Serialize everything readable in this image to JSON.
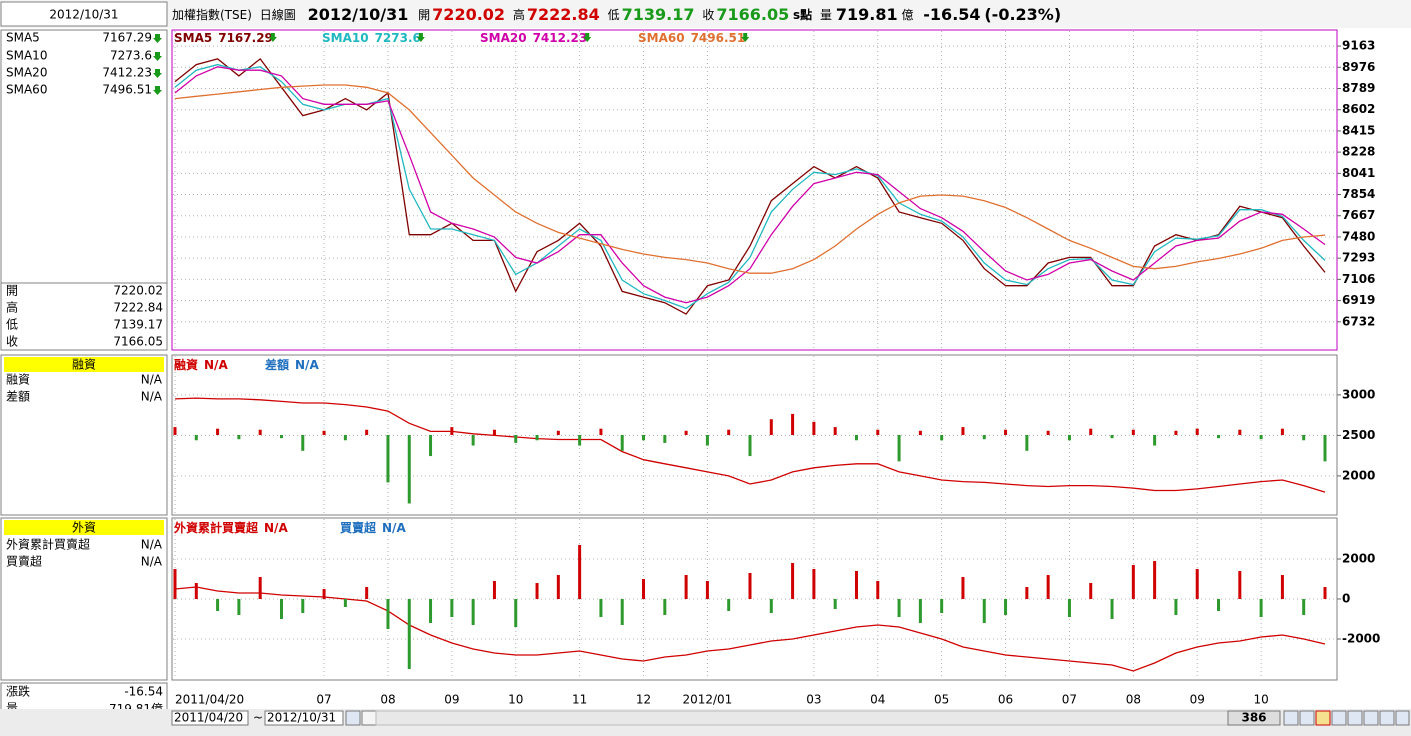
{
  "header": {
    "symbol": "加權指數(TSE)",
    "period": "日線圖",
    "date": "2012/10/31",
    "open_label": "開",
    "open": "7220.02",
    "high_label": "高",
    "high": "7222.84",
    "low_label": "低",
    "low": "7139.17",
    "close_label": "收",
    "close": "7166.05",
    "unit": "s點",
    "volume_label": "量",
    "volume": "719.81",
    "volume_unit": "億",
    "change": "-16.54",
    "change_pct": "(-0.23%)"
  },
  "sidebar": {
    "date": "2012/10/31",
    "change_label": "漲跌"
  },
  "toolbar": {
    "start": "2011/04/20",
    "separator": "~",
    "end": "2012/10/31",
    "count": "386"
  },
  "chart_data": [
    {
      "type": "line",
      "categories": [
        "2011/04/20",
        null,
        null,
        null,
        null,
        null,
        null,
        "07",
        null,
        null,
        "08",
        null,
        null,
        "09",
        null,
        null,
        "10",
        null,
        null,
        "11",
        null,
        null,
        "12",
        null,
        null,
        "2012/01",
        null,
        null,
        null,
        null,
        "03",
        null,
        null,
        "04",
        null,
        null,
        "05",
        null,
        null,
        "06",
        null,
        null,
        "07",
        null,
        null,
        "08",
        null,
        null,
        "09",
        null,
        null,
        "10",
        null,
        null,
        null
      ],
      "series": [
        {
          "name": "SMA5",
          "color": "#800000",
          "values": [
            8850,
            9000,
            9050,
            8900,
            9050,
            8800,
            8550,
            8600,
            8700,
            8600,
            8750,
            7500,
            7500,
            7600,
            7450,
            7450,
            7000,
            7350,
            7450,
            7600,
            7400,
            7000,
            6950,
            6900,
            6800,
            7050,
            7100,
            7400,
            7800,
            7950,
            8100,
            8000,
            8100,
            8000,
            7700,
            7650,
            7600,
            7450,
            7200,
            7050,
            7050,
            7250,
            7300,
            7300,
            7050,
            7050,
            7400,
            7500,
            7450,
            7500,
            7750,
            7700,
            7650,
            7400,
            7167.29
          ]
        },
        {
          "name": "SMA10",
          "color": "#20b8c0",
          "values": [
            8800,
            8950,
            9000,
            8950,
            8980,
            8850,
            8650,
            8600,
            8650,
            8650,
            8700,
            7900,
            7550,
            7550,
            7500,
            7450,
            7150,
            7250,
            7400,
            7550,
            7450,
            7100,
            6980,
            6920,
            6850,
            6980,
            7080,
            7300,
            7700,
            7900,
            8050,
            8030,
            8080,
            8020,
            7780,
            7680,
            7620,
            7480,
            7250,
            7100,
            7060,
            7200,
            7280,
            7290,
            7100,
            7060,
            7350,
            7470,
            7460,
            7490,
            7720,
            7720,
            7660,
            7450,
            7273.6
          ]
        },
        {
          "name": "SMA20",
          "color": "#d000a8",
          "values": [
            8750,
            8900,
            8980,
            8950,
            8950,
            8900,
            8700,
            8650,
            8650,
            8650,
            8680,
            8200,
            7700,
            7600,
            7550,
            7480,
            7300,
            7250,
            7350,
            7500,
            7500,
            7250,
            7050,
            6950,
            6900,
            6950,
            7050,
            7200,
            7500,
            7750,
            7950,
            8000,
            8050,
            8030,
            7880,
            7730,
            7650,
            7530,
            7350,
            7180,
            7100,
            7150,
            7250,
            7280,
            7180,
            7100,
            7250,
            7400,
            7450,
            7470,
            7620,
            7700,
            7680,
            7550,
            7412.23
          ]
        },
        {
          "name": "SMA60",
          "color": "#e07030",
          "values": [
            8700,
            8720,
            8740,
            8760,
            8780,
            8800,
            8810,
            8820,
            8820,
            8800,
            8750,
            8600,
            8400,
            8200,
            8000,
            7850,
            7700,
            7600,
            7520,
            7470,
            7420,
            7370,
            7330,
            7300,
            7280,
            7250,
            7200,
            7160,
            7160,
            7200,
            7280,
            7400,
            7550,
            7680,
            7780,
            7840,
            7850,
            7840,
            7800,
            7740,
            7650,
            7550,
            7450,
            7380,
            7300,
            7220,
            7200,
            7220,
            7260,
            7290,
            7330,
            7380,
            7450,
            7480,
            7496.51
          ]
        }
      ],
      "ylim": [
        6492,
        9296
      ],
      "yticks": [
        9163,
        8976,
        8789,
        8602,
        8415,
        8228,
        8041,
        7854,
        7667,
        7480,
        7293,
        7106,
        6919,
        6732
      ],
      "grid": true
    },
    {
      "type": "line",
      "title": "融資",
      "series": [
        {
          "name": "融資",
          "color": "#d00000",
          "current": "N/A",
          "values": [
            2950,
            2960,
            2950,
            2950,
            2940,
            2920,
            2900,
            2900,
            2880,
            2850,
            2800,
            2650,
            2550,
            2550,
            2520,
            2500,
            2480,
            2460,
            2450,
            2450,
            2450,
            2300,
            2200,
            2150,
            2100,
            2050,
            2000,
            1900,
            1950,
            2050,
            2100,
            2130,
            2150,
            2150,
            2050,
            2000,
            1950,
            1930,
            1920,
            1900,
            1880,
            1870,
            1880,
            1880,
            1870,
            1850,
            1820,
            1820,
            1840,
            1870,
            1900,
            1930,
            1950,
            1880,
            1800
          ]
        },
        {
          "name": "差額",
          "color": "#1f6fbf",
          "current": "N/A",
          "style": "bar",
          "axis": "y2",
          "values": [
            150,
            -100,
            120,
            -80,
            100,
            -60,
            -300,
            80,
            -100,
            100,
            -900,
            -1300,
            -400,
            150,
            -200,
            100,
            -150,
            -100,
            80,
            -200,
            120,
            -300,
            -100,
            -150,
            80,
            -200,
            100,
            -400,
            300,
            400,
            250,
            150,
            -100,
            100,
            -500,
            80,
            -100,
            150,
            -80,
            100,
            -300,
            80,
            -100,
            120,
            -60,
            100,
            -200,
            80,
            120,
            -60,
            100,
            -80,
            120,
            -100,
            -500
          ]
        }
      ],
      "ylim": [
        1530,
        3480
      ],
      "yticks": [
        3000,
        2500,
        2000
      ],
      "y2lim": [
        -1500,
        1500
      ],
      "up_color": "#d00000",
      "down_color": "#2e9a2e",
      "grid": true
    },
    {
      "type": "line",
      "title": "外資",
      "series": [
        {
          "name": "外資累計買賣超",
          "color": "#d00000",
          "current": "N/A",
          "values": [
            500,
            600,
            400,
            300,
            300,
            200,
            150,
            100,
            0,
            -100,
            -600,
            -1300,
            -1800,
            -2200,
            -2500,
            -2700,
            -2800,
            -2800,
            -2700,
            -2600,
            -2800,
            -3000,
            -3100,
            -2900,
            -2800,
            -2600,
            -2500,
            -2300,
            -2100,
            -2000,
            -1800,
            -1600,
            -1400,
            -1300,
            -1400,
            -1700,
            -2000,
            -2400,
            -2600,
            -2800,
            -2900,
            -3000,
            -3100,
            -3200,
            -3300,
            -3600,
            -3200,
            -2700,
            -2400,
            -2200,
            -2100,
            -1900,
            -1800,
            -2000,
            -2250
          ]
        },
        {
          "name": "買賣超",
          "color": "#1f6fbf",
          "current": "N/A",
          "style": "bar",
          "values": [
            1500,
            800,
            -600,
            -800,
            1100,
            -1000,
            -700,
            500,
            -400,
            600,
            -1500,
            -3500,
            -1200,
            -900,
            -1300,
            900,
            -1400,
            800,
            1200,
            2700,
            -900,
            -1300,
            1000,
            -800,
            1200,
            900,
            -600,
            1300,
            -700,
            1800,
            1500,
            -500,
            1400,
            900,
            -900,
            -1200,
            -700,
            1100,
            -1200,
            -800,
            600,
            1200,
            -900,
            800,
            -1000,
            1700,
            1900,
            -800,
            1500,
            -600,
            1400,
            -900,
            1200,
            -800,
            600
          ]
        }
      ],
      "ylim": [
        -4000,
        4000
      ],
      "yticks": [
        2000,
        0,
        -2000
      ],
      "up_color": "#d00000",
      "down_color": "#2e9a2e",
      "grid": true
    }
  ]
}
